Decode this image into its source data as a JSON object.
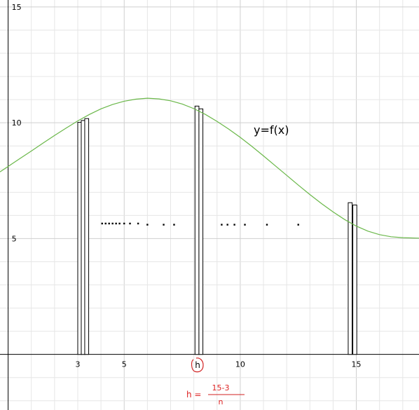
{
  "chart_data": {
    "type": "line",
    "title": "",
    "xlabel": "",
    "ylabel": "",
    "xlim": [
      -0.35,
      17.7
    ],
    "ylim": [
      -2.4,
      15.3
    ],
    "grid": true,
    "x_ticks": [
      {
        "value": 3,
        "label": "3"
      },
      {
        "value": 5,
        "label": "5"
      },
      {
        "value": 10,
        "label": "10"
      },
      {
        "value": 15,
        "label": "15"
      }
    ],
    "y_ticks": [
      {
        "value": 5,
        "label": "5"
      },
      {
        "value": 10,
        "label": "10"
      },
      {
        "value": 15,
        "label": "15"
      }
    ],
    "series": [
      {
        "name": "y=f(x)",
        "color": "#6bb84a",
        "x": [
          -0.35,
          0.5,
          1.0,
          1.5,
          2.0,
          2.5,
          3.0,
          3.5,
          4.0,
          4.5,
          5.0,
          5.5,
          6.0,
          6.5,
          7.0,
          7.5,
          8.0,
          8.5,
          9.0,
          9.5,
          10.0,
          10.5,
          11.0,
          11.5,
          12.0,
          12.5,
          13.0,
          13.5,
          14.0,
          14.5,
          15.0,
          15.5,
          16.0,
          16.5,
          17.0,
          17.7
        ],
        "y": [
          7.88,
          8.45,
          8.78,
          9.12,
          9.45,
          9.77,
          10.08,
          10.36,
          10.6,
          10.79,
          10.93,
          11.02,
          11.06,
          11.03,
          10.95,
          10.81,
          10.61,
          10.36,
          10.06,
          9.73,
          9.37,
          8.98,
          8.57,
          8.15,
          7.73,
          7.31,
          6.9,
          6.51,
          6.15,
          5.82,
          5.54,
          5.32,
          5.17,
          5.08,
          5.04,
          5.02
        ]
      }
    ],
    "rectangles": [
      {
        "x": 3.0,
        "height": 10.02
      },
      {
        "x": 3.15,
        "height": 10.1
      },
      {
        "x": 3.3,
        "height": 10.18
      },
      {
        "x": 8.05,
        "height": 10.72
      },
      {
        "x": 8.22,
        "height": 10.6
      },
      {
        "x": 14.65,
        "height": 6.55
      },
      {
        "x": 14.85,
        "height": 6.45
      }
    ],
    "rect_width": 0.17,
    "ellipsis_dots": [
      {
        "x": 4.05,
        "y": 5.65
      },
      {
        "x": 4.2,
        "y": 5.65
      },
      {
        "x": 4.35,
        "y": 5.65
      },
      {
        "x": 4.5,
        "y": 5.65
      },
      {
        "x": 4.65,
        "y": 5.65
      },
      {
        "x": 4.8,
        "y": 5.65
      },
      {
        "x": 5.0,
        "y": 5.65
      },
      {
        "x": 5.25,
        "y": 5.65
      },
      {
        "x": 5.6,
        "y": 5.65
      },
      {
        "x": 6.0,
        "y": 5.6
      },
      {
        "x": 6.7,
        "y": 5.6
      },
      {
        "x": 7.15,
        "y": 5.6
      },
      {
        "x": 9.2,
        "y": 5.6
      },
      {
        "x": 9.45,
        "y": 5.6
      },
      {
        "x": 9.75,
        "y": 5.6
      },
      {
        "x": 10.2,
        "y": 5.6
      },
      {
        "x": 11.15,
        "y": 5.6
      },
      {
        "x": 12.5,
        "y": 5.6
      }
    ],
    "annotations": {
      "curve_label": "y=f(x)",
      "h_marker": "h",
      "h_formula_lhs": "h =",
      "h_formula_numerator": "15-3",
      "h_formula_denominator": "n",
      "color": "#d22222"
    }
  }
}
